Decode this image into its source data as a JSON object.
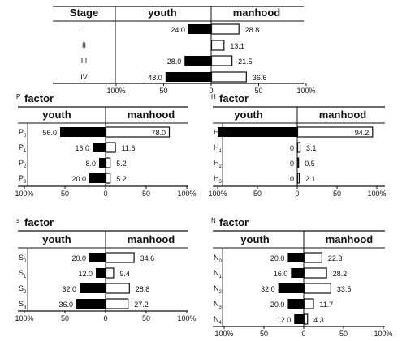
{
  "chart_data": [
    {
      "type": "bar",
      "panel": "stage",
      "title": "",
      "header": {
        "first": "Stage",
        "youth": "youth",
        "manhood": "manhood"
      },
      "categories": [
        "I",
        "II",
        "III",
        "IV"
      ],
      "series": [
        {
          "name": "youth",
          "values": [
            24.0,
            null,
            28.0,
            48.0
          ],
          "labels": [
            "24.0",
            "",
            "28.0",
            "48.0"
          ],
          "fill": "#000000"
        },
        {
          "name": "manhood",
          "values": [
            28.8,
            13.1,
            21.5,
            36.6
          ],
          "labels": [
            "28.8",
            "13.1",
            "21.5",
            "36.6"
          ],
          "fill": "#ffffff"
        }
      ],
      "axis_ticks": [
        "100%",
        "50",
        "0",
        "50",
        "100%"
      ],
      "xlim": [
        -100,
        100
      ]
    },
    {
      "type": "bar",
      "panel": "p",
      "title_small": "P",
      "title": "factor",
      "header": {
        "youth": "youth",
        "manhood": "manhood"
      },
      "categories": [
        "P0",
        "P1",
        "P2",
        "P3"
      ],
      "category_labels": [
        {
          "base": "P",
          "sub": "0"
        },
        {
          "base": "P",
          "sub": "1"
        },
        {
          "base": "P",
          "sub": "2"
        },
        {
          "base": "P",
          "sub": "3"
        }
      ],
      "series": [
        {
          "name": "youth",
          "values": [
            56.0,
            16.0,
            8.0,
            20.0
          ],
          "labels": [
            "56.0",
            "16.0",
            "8.0",
            "20.0"
          ],
          "fill": "#000000"
        },
        {
          "name": "manhood",
          "values": [
            78.0,
            11.6,
            5.2,
            5.2
          ],
          "labels": [
            "78.0",
            "11.6",
            "5.2",
            "5.2"
          ],
          "fill": "#ffffff"
        }
      ],
      "axis_ticks": [
        "100%",
        "50",
        "0",
        "50",
        "100%"
      ],
      "xlim": [
        -100,
        100
      ]
    },
    {
      "type": "bar",
      "panel": "h",
      "title_small": "H",
      "title": "factor",
      "header": {
        "youth": "youth",
        "manhood": "manhood"
      },
      "categories": [
        "H0",
        "H1",
        "H2",
        "H3"
      ],
      "category_labels": [
        {
          "base": "H",
          "sub": "0"
        },
        {
          "base": "H",
          "sub": "1"
        },
        {
          "base": "H",
          "sub": "2"
        },
        {
          "base": "H",
          "sub": "3"
        }
      ],
      "series": [
        {
          "name": "youth",
          "values": [
            100,
            0,
            0,
            0
          ],
          "labels": [
            "100",
            "0",
            "0",
            "0"
          ],
          "fill": "#000000"
        },
        {
          "name": "manhood",
          "values": [
            94.2,
            3.1,
            0.5,
            2.1
          ],
          "labels": [
            "94.2",
            "3.1",
            "0.5",
            "2.1"
          ],
          "fill": "#ffffff"
        }
      ],
      "axis_ticks": [
        "100%",
        "50",
        "0",
        "50",
        "100%"
      ],
      "xlim": [
        -100,
        100
      ]
    },
    {
      "type": "bar",
      "panel": "s",
      "title_small": "s",
      "title": "factor",
      "header": {
        "youth": "youth",
        "manhood": "manhood"
      },
      "categories": [
        "S0",
        "S1",
        "S2",
        "S3"
      ],
      "category_labels": [
        {
          "base": "S",
          "sub": "0"
        },
        {
          "base": "S",
          "sub": "1"
        },
        {
          "base": "S",
          "sub": "2"
        },
        {
          "base": "S",
          "sub": "3"
        }
      ],
      "series": [
        {
          "name": "youth",
          "values": [
            20.0,
            12.0,
            32.0,
            36.0
          ],
          "labels": [
            "20.0",
            "12.0",
            "32.0",
            "36.0"
          ],
          "fill": "#000000"
        },
        {
          "name": "manhood",
          "values": [
            34.6,
            9.4,
            28.8,
            27.2
          ],
          "labels": [
            "34.6",
            "9.4",
            "28.8",
            "27.2"
          ],
          "fill": "#ffffff"
        }
      ],
      "axis_ticks": [
        "100%",
        "50",
        "0",
        "50",
        "100%"
      ],
      "xlim": [
        -100,
        100
      ]
    },
    {
      "type": "bar",
      "panel": "n",
      "title_small": "N",
      "title": "factor",
      "header": {
        "youth": "youth",
        "manhood": "manhood"
      },
      "categories": [
        "N0",
        "N1",
        "N2",
        "N3",
        "N4"
      ],
      "category_labels": [
        {
          "base": "N",
          "sub": "0"
        },
        {
          "base": "N",
          "sub": "1"
        },
        {
          "base": "N",
          "sub": "2"
        },
        {
          "base": "N",
          "sub": "3"
        },
        {
          "base": "N",
          "sub": "4"
        }
      ],
      "series": [
        {
          "name": "youth",
          "values": [
            20.0,
            16.0,
            32.0,
            20.0,
            12.0
          ],
          "labels": [
            "20.0",
            "16.0",
            "32.0",
            "20.0",
            "12.0"
          ],
          "fill": "#000000"
        },
        {
          "name": "manhood",
          "values": [
            22.3,
            28.2,
            33.5,
            11.7,
            4.3
          ],
          "labels": [
            "22.3",
            "28.2",
            "33.5",
            "11.7",
            "4.3"
          ],
          "fill": "#ffffff"
        }
      ],
      "axis_ticks": [
        "100%",
        "50",
        "0",
        "50",
        "100%"
      ],
      "xlim": [
        -100,
        100
      ]
    }
  ]
}
